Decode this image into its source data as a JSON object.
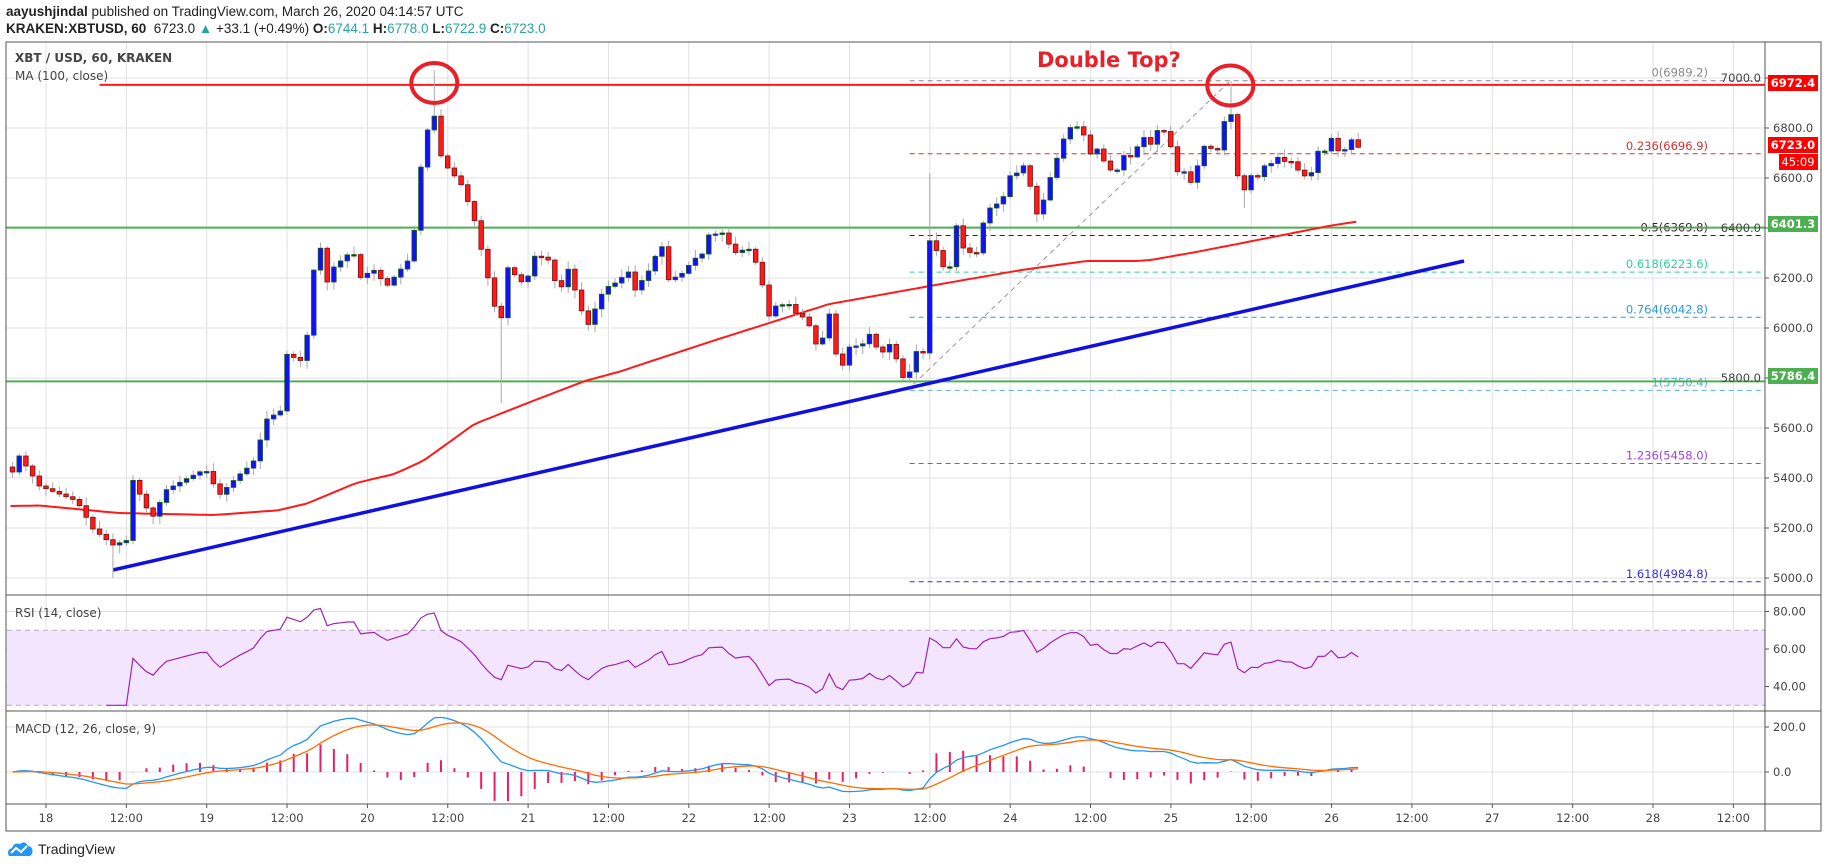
{
  "header": {
    "author": "aayushjindal",
    "published": "published on TradingView.com, March 26, 2020 04:14:57 UTC",
    "symbol": "KRAKEN:XBTUSD, 60",
    "last": "6723.0",
    "change": "+33.1 (+0.49%)",
    "open_label": "O:",
    "open": "6744.1",
    "high_label": "H:",
    "high": "6778.0",
    "low_label": "L:",
    "low": "6722.9",
    "close_label": "C:",
    "close": "6723.0"
  },
  "pane": {
    "title": "XBT / USD, 60, KRAKEN",
    "ma_label": "MA (100, close)",
    "rsi_label": "RSI (14, close)",
    "macd_label": "MACD (12, 26, close, 9)"
  },
  "annotation": {
    "text": "Double Top?"
  },
  "badges": {
    "resistance": "6972.4",
    "last_price": "6723.0",
    "countdown": "45:09",
    "support_upper": "6401.3",
    "support_lower": "5786.4"
  },
  "footer": {
    "logo_text": "TradingView"
  },
  "colors": {
    "up": "#1010ff",
    "down": "#ff1a1a",
    "ma": "#ff1a1a",
    "trendline": "#1010e0",
    "support": "#4caf50",
    "resistance": "#ff1a1a",
    "rsi": "#9c27b0",
    "macd": "#2196f3",
    "signal": "#ff6d00",
    "hist": "#e91e63"
  },
  "chart_data": {
    "type": "candlestick",
    "x_unit": "hours since Mar 18 00:00",
    "x_tick_labels": [
      "18",
      "12:00",
      "19",
      "12:00",
      "20",
      "12:00",
      "21",
      "12:00",
      "22",
      "12:00",
      "23",
      "12:00",
      "24",
      "12:00",
      "25",
      "12:00",
      "26",
      "12:00",
      "27",
      "12:00",
      "28",
      "12:00"
    ],
    "y_ticks": [
      7000,
      6800,
      6600,
      6400,
      6200,
      6000,
      5800,
      5600,
      5400,
      5200,
      5000
    ],
    "ylim": [
      4970,
      7070
    ],
    "close_path": [
      [
        -5,
        5424
      ],
      [
        -4,
        5488
      ],
      [
        -1,
        5368
      ],
      [
        4.6,
        5308
      ],
      [
        7,
        5196
      ],
      [
        10,
        5132
      ],
      [
        12,
        5150
      ],
      [
        12.9,
        5396
      ],
      [
        15.8,
        5236
      ],
      [
        17.9,
        5352
      ],
      [
        20.9,
        5396
      ],
      [
        23.8,
        5436
      ],
      [
        25.9,
        5332
      ],
      [
        28.8,
        5412
      ],
      [
        30.9,
        5460
      ],
      [
        33,
        5636
      ],
      [
        35,
        5668
      ],
      [
        35.9,
        5896
      ],
      [
        38,
        5870
      ],
      [
        38.9,
        5944
      ],
      [
        39.9,
        6216
      ],
      [
        40.8,
        6356
      ],
      [
        41.8,
        6172
      ],
      [
        43,
        6244
      ],
      [
        45.8,
        6312
      ],
      [
        47,
        6202
      ],
      [
        48.9,
        6234
      ],
      [
        50.9,
        6168
      ],
      [
        54,
        6268
      ],
      [
        54.8,
        6338
      ],
      [
        55.9,
        6628
      ],
      [
        56.9,
        6784
      ],
      [
        57.9,
        6866
      ],
      [
        58.8,
        6698
      ],
      [
        60,
        6640
      ],
      [
        61.9,
        6580
      ],
      [
        63.8,
        6452
      ],
      [
        65.9,
        6212
      ],
      [
        67.8,
        5996
      ],
      [
        68.9,
        6244
      ],
      [
        71.6,
        6168
      ],
      [
        72.8,
        6288
      ],
      [
        74.9,
        6280
      ],
      [
        76.7,
        6132
      ],
      [
        77.8,
        6252
      ],
      [
        80.8,
        6002
      ],
      [
        82.9,
        6132
      ],
      [
        84.7,
        6188
      ],
      [
        85,
        6180
      ],
      [
        87,
        6224
      ],
      [
        88,
        6152
      ],
      [
        90,
        6228
      ],
      [
        91.9,
        6340
      ],
      [
        92.9,
        6192
      ],
      [
        94.8,
        6212
      ],
      [
        96.8,
        6276
      ],
      [
        98,
        6296
      ],
      [
        98.9,
        6372
      ],
      [
        101,
        6380
      ],
      [
        102.8,
        6300
      ],
      [
        104.9,
        6320
      ],
      [
        105.9,
        6272
      ],
      [
        107,
        6172
      ],
      [
        107.9,
        6044
      ],
      [
        109,
        6088
      ],
      [
        110.9,
        6098
      ],
      [
        111.9,
        6060
      ],
      [
        113,
        6044
      ],
      [
        113.9,
        6016
      ],
      [
        115,
        5936
      ],
      [
        116,
        5960
      ],
      [
        116.9,
        6072
      ],
      [
        118,
        5896
      ],
      [
        118.9,
        5844
      ],
      [
        120,
        5924
      ],
      [
        121.9,
        5932
      ],
      [
        122.9,
        5980
      ],
      [
        124,
        5924
      ],
      [
        125,
        5904
      ],
      [
        125.9,
        5940
      ],
      [
        126.9,
        5884
      ],
      [
        128,
        5802
      ],
      [
        129,
        5824
      ],
      [
        130,
        5906
      ],
      [
        131,
        5900
      ],
      [
        132,
        6349
      ],
      [
        133,
        6310
      ],
      [
        134,
        6245
      ],
      [
        135,
        6245
      ],
      [
        136,
        6409
      ],
      [
        137,
        6320
      ],
      [
        138,
        6302
      ],
      [
        139,
        6300
      ],
      [
        140,
        6420
      ],
      [
        141,
        6480
      ],
      [
        142.8,
        6509
      ],
      [
        144,
        6609
      ],
      [
        145,
        6620
      ],
      [
        146,
        6649
      ],
      [
        147,
        6567
      ],
      [
        148,
        6456
      ],
      [
        149,
        6512
      ],
      [
        150,
        6602
      ],
      [
        152,
        6756
      ],
      [
        153,
        6802
      ],
      [
        154,
        6805
      ],
      [
        155,
        6772
      ],
      [
        156,
        6696
      ],
      [
        157,
        6716
      ],
      [
        158,
        6668
      ],
      [
        159,
        6632
      ],
      [
        160,
        6632
      ],
      [
        161,
        6690
      ],
      [
        162,
        6684
      ],
      [
        163,
        6725
      ],
      [
        164,
        6762
      ],
      [
        165,
        6735
      ],
      [
        166,
        6790
      ],
      [
        167,
        6786
      ],
      [
        168,
        6725
      ],
      [
        168.8,
        6625
      ],
      [
        170,
        6625
      ],
      [
        170.9,
        6576
      ],
      [
        171.9,
        6640
      ],
      [
        172.9,
        6728
      ],
      [
        173.9,
        6720
      ],
      [
        174.9,
        6700
      ],
      [
        175.9,
        6820
      ],
      [
        176.9,
        6880
      ],
      [
        177.9,
        6616
      ],
      [
        178.9,
        6545
      ],
      [
        179.8,
        6612
      ],
      [
        180.9,
        6600
      ],
      [
        181.8,
        6648
      ],
      [
        182.8,
        6652
      ],
      [
        183.9,
        6685
      ],
      [
        184.8,
        6665
      ],
      [
        185.8,
        6672
      ],
      [
        186.8,
        6637
      ],
      [
        187.9,
        6608
      ],
      [
        188.9,
        6612
      ],
      [
        189.9,
        6708
      ],
      [
        190.9,
        6700
      ],
      [
        191.8,
        6770
      ],
      [
        192.9,
        6709
      ],
      [
        193.9,
        6709
      ],
      [
        194.9,
        6756
      ],
      [
        196,
        6723
      ]
    ],
    "wick_extremes": [
      [
        10,
        5000,
        "low"
      ],
      [
        58,
        7030,
        "high"
      ],
      [
        68,
        5700,
        "low"
      ],
      [
        132,
        6620,
        "high"
      ],
      [
        177,
        6989,
        "high"
      ],
      [
        179,
        6480,
        "low"
      ]
    ],
    "ma100_path": [
      [
        -5.3,
        5288
      ],
      [
        -1,
        5290
      ],
      [
        10.8,
        5260
      ],
      [
        24.9,
        5252
      ],
      [
        34.5,
        5270
      ],
      [
        39,
        5298
      ],
      [
        46.3,
        5380
      ],
      [
        52,
        5416
      ],
      [
        56.3,
        5468
      ],
      [
        64,
        5616
      ],
      [
        72.8,
        5709
      ],
      [
        80.5,
        5788
      ],
      [
        85.5,
        5824
      ],
      [
        100,
        5952
      ],
      [
        117,
        6096
      ],
      [
        132,
        6168
      ],
      [
        145.7,
        6232
      ],
      [
        155.4,
        6268
      ],
      [
        162.8,
        6268
      ],
      [
        165,
        6272
      ],
      [
        172,
        6305
      ],
      [
        191.8,
        6409
      ],
      [
        195.8,
        6425
      ]
    ],
    "horizontal_levels": [
      {
        "name": "resistance",
        "price": 6972.4,
        "from_h": 8
      },
      {
        "name": "support-upper",
        "price": 6401.3,
        "from_h": -6
      },
      {
        "name": "support-lower",
        "price": 5786.4,
        "from_h": -6
      }
    ],
    "trendline": [
      [
        10,
        5032
      ],
      [
        211.8,
        6268
      ]
    ],
    "fib": {
      "from_h": 129,
      "swing": [
        [
          128.6,
          5750.4
        ],
        [
          176.9,
          6989.2
        ]
      ],
      "levels": [
        {
          "label": "0(6989.2)",
          "price": 6989.2,
          "color": "#888888"
        },
        {
          "label": "0.236(6696.9)",
          "price": 6696.9,
          "color": "#d03030"
        },
        {
          "label": "0.5(6369.8)",
          "price": 6369.8,
          "color": "#4a1530"
        },
        {
          "label": "0.618(6223.6)",
          "price": 6223.6,
          "color": "#2ccf9a"
        },
        {
          "label": "0.764(6042.8)",
          "price": 6042.8,
          "color": "#2b9ae0"
        },
        {
          "label": "1(5750.4)",
          "price": 5750.4,
          "color": "#5ab0e0"
        },
        {
          "label": "1.236(5458.0)",
          "price": 5458.0,
          "color": "#a040e0"
        },
        {
          "label": "1.618(4984.8)",
          "price": 4984.8,
          "color": "#3030e0"
        }
      ]
    },
    "circles": [
      [
        58,
        6980
      ],
      [
        176.9,
        6970
      ]
    ],
    "rsi": {
      "period": 14,
      "ticks": [
        80,
        60,
        40
      ],
      "band": [
        30,
        70
      ],
      "ylim": [
        28,
        88
      ]
    },
    "macd": {
      "fast": 12,
      "slow": 26,
      "signal": 9,
      "ticks": [
        "200.0",
        "0.0"
      ],
      "tick_values": [
        200,
        0
      ]
    }
  }
}
